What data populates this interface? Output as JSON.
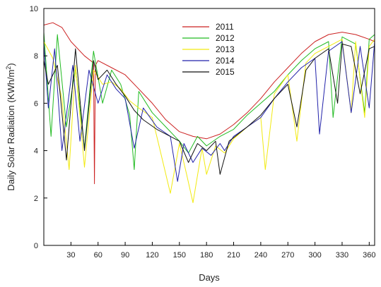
{
  "chart_data": {
    "type": "line",
    "title": "",
    "xlabel": "Days",
    "ylabel_main": "Daily  Solar Radiation (KWh/m",
    "ylabel_sup": "2",
    "ylabel_close": ")",
    "xlim": [
      0,
      366
    ],
    "ylim": [
      0,
      10
    ],
    "x_ticks": [
      30,
      60,
      90,
      120,
      150,
      180,
      210,
      240,
      270,
      300,
      330,
      360
    ],
    "y_ticks": [
      0,
      2,
      4,
      6,
      8,
      10
    ],
    "grid": false,
    "legend_position": "top-center",
    "series": [
      {
        "name": "2011",
        "color": "#cc2222",
        "x": [
          0,
          10,
          20,
          30,
          45,
          55,
          56,
          57,
          60,
          75,
          90,
          105,
          120,
          135,
          150,
          165,
          180,
          195,
          210,
          225,
          240,
          255,
          270,
          285,
          300,
          315,
          330,
          345,
          360,
          366
        ],
        "y": [
          9.3,
          9.4,
          9.2,
          8.6,
          8.0,
          7.7,
          2.6,
          7.6,
          7.8,
          7.5,
          7.2,
          6.6,
          6.0,
          5.3,
          4.8,
          4.6,
          4.5,
          4.7,
          5.1,
          5.6,
          6.2,
          6.9,
          7.5,
          8.1,
          8.6,
          8.9,
          9.0,
          8.9,
          8.7,
          8.6
        ]
      },
      {
        "name": "2012",
        "color": "#22bb22",
        "x": [
          0,
          8,
          15,
          25,
          35,
          45,
          55,
          65,
          75,
          85,
          95,
          100,
          105,
          120,
          135,
          150,
          160,
          170,
          180,
          195,
          210,
          225,
          240,
          255,
          270,
          285,
          300,
          315,
          320,
          330,
          345,
          355,
          360,
          366
        ],
        "y": [
          9.0,
          4.6,
          8.9,
          5.0,
          7.5,
          4.1,
          8.2,
          6.0,
          7.4,
          6.8,
          5.5,
          3.2,
          6.5,
          5.6,
          5.0,
          4.4,
          3.9,
          4.6,
          4.2,
          4.6,
          4.9,
          5.5,
          6.0,
          6.5,
          7.2,
          7.8,
          8.3,
          8.6,
          5.4,
          8.8,
          8.5,
          5.6,
          8.7,
          8.9
        ]
      },
      {
        "name": "2013",
        "color": "#f2ea10",
        "x": [
          0,
          10,
          20,
          28,
          35,
          45,
          55,
          65,
          75,
          85,
          95,
          105,
          120,
          130,
          140,
          150,
          158,
          165,
          175,
          180,
          190,
          200,
          210,
          225,
          240,
          245,
          255,
          270,
          280,
          290,
          300,
          315,
          330,
          340,
          345,
          355,
          360,
          366
        ],
        "y": [
          8.6,
          7.9,
          6.2,
          3.2,
          7.6,
          3.3,
          7.4,
          6.8,
          6.9,
          6.6,
          6.1,
          5.8,
          5.4,
          3.8,
          2.2,
          4.3,
          3.0,
          1.8,
          4.1,
          3.0,
          4.2,
          3.9,
          4.5,
          5.0,
          5.4,
          3.2,
          6.4,
          7.2,
          4.4,
          7.7,
          8.1,
          8.4,
          8.7,
          5.6,
          8.6,
          5.4,
          8.4,
          8.7
        ]
      },
      {
        "name": "2014",
        "color": "#2222aa",
        "x": [
          0,
          5,
          12,
          20,
          32,
          40,
          50,
          60,
          70,
          80,
          90,
          100,
          110,
          125,
          140,
          148,
          155,
          165,
          175,
          185,
          195,
          200,
          210,
          225,
          240,
          255,
          270,
          285,
          300,
          305,
          315,
          330,
          340,
          350,
          360,
          366
        ],
        "y": [
          8.5,
          5.8,
          8.3,
          4.0,
          7.6,
          4.4,
          7.4,
          6.0,
          7.2,
          6.6,
          6.2,
          4.1,
          5.8,
          5.0,
          4.6,
          2.7,
          4.3,
          3.5,
          4.1,
          3.8,
          4.3,
          4.0,
          4.6,
          5.0,
          5.4,
          6.2,
          6.9,
          7.5,
          7.9,
          4.7,
          8.2,
          8.6,
          5.6,
          8.4,
          5.8,
          8.6
        ]
      },
      {
        "name": "2015",
        "color": "#111111",
        "x": [
          0,
          5,
          15,
          25,
          35,
          45,
          55,
          60,
          70,
          80,
          90,
          100,
          110,
          125,
          140,
          150,
          160,
          170,
          180,
          190,
          195,
          205,
          215,
          225,
          240,
          255,
          270,
          280,
          290,
          300,
          315,
          325,
          330,
          340,
          350,
          360,
          366
        ],
        "y": [
          7.8,
          6.8,
          7.6,
          3.6,
          8.3,
          4.0,
          7.8,
          7.0,
          7.4,
          6.8,
          6.3,
          5.7,
          5.3,
          4.9,
          4.6,
          4.4,
          3.5,
          4.3,
          4.0,
          4.4,
          3.0,
          4.4,
          4.7,
          5.0,
          5.5,
          6.2,
          6.8,
          5.0,
          7.4,
          7.9,
          8.3,
          6.0,
          8.5,
          8.4,
          6.4,
          8.3,
          8.4
        ]
      }
    ]
  }
}
